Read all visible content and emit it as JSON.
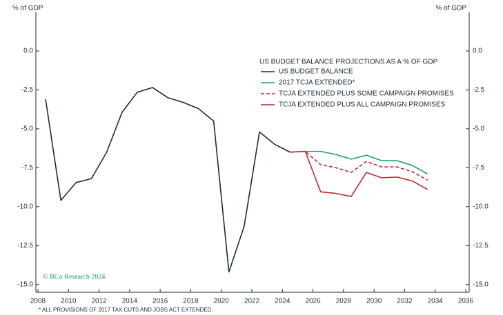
{
  "chart_data": {
    "type": "line",
    "y_axis_label_left": "% of GDP",
    "y_axis_label_right": "% of GDP",
    "legend_title": "US BUDGET BALANCE PROJECTIONS AS A % OF GDP",
    "watermark": "© BCα Research 2024",
    "footnote": "* ALL PROVISIONS OF 2017 TAX CUTS AND JOBS ACT EXTENDED.",
    "x": [
      2008.5,
      2009.5,
      2010.5,
      2011.5,
      2012.5,
      2013.5,
      2014.5,
      2015.5,
      2016.5,
      2017.5,
      2018.5,
      2019.5,
      2020.5,
      2021.5,
      2022.5,
      2023.5,
      2024.5,
      2025.5,
      2026.5,
      2027.5,
      2028.5,
      2029.5,
      2030.5,
      2031.5,
      2032.5,
      2033.5
    ],
    "series": [
      {
        "name": "US BUDGET BALANCE",
        "color": "#1d2b36",
        "style": "solid",
        "values": [
          -3.1,
          -9.6,
          -8.45,
          -8.2,
          -6.5,
          -3.95,
          -2.65,
          -2.35,
          -3.0,
          -3.3,
          -3.7,
          -4.5,
          -14.2,
          -11.25,
          -5.2,
          -6.0,
          -6.5,
          null,
          null,
          null,
          null,
          null,
          null,
          null,
          null,
          null
        ]
      },
      {
        "name": "2017 TCJA EXTENDED*",
        "color": "#1a9e7a",
        "style": "solid",
        "values": [
          null,
          null,
          null,
          null,
          null,
          null,
          null,
          null,
          null,
          null,
          null,
          null,
          null,
          null,
          null,
          null,
          -6.5,
          -6.45,
          -6.45,
          -6.65,
          -6.95,
          -6.7,
          -7.05,
          -7.05,
          -7.35,
          -7.9
        ]
      },
      {
        "name": "TCJA EXTENDED PLUS SOME CAMPAIGN PROMISES",
        "color": "#c0272d",
        "style": "dashed",
        "values": [
          null,
          null,
          null,
          null,
          null,
          null,
          null,
          null,
          null,
          null,
          null,
          null,
          null,
          null,
          null,
          null,
          -6.5,
          -6.45,
          -7.3,
          -7.5,
          -7.8,
          -7.1,
          -7.45,
          -7.45,
          -7.75,
          -8.3
        ]
      },
      {
        "name": "TCJA EXTENDED PLUS ALL CAMPAIGN PROMISES",
        "color": "#c0272d",
        "style": "solid",
        "values": [
          null,
          null,
          null,
          null,
          null,
          null,
          null,
          null,
          null,
          null,
          null,
          null,
          null,
          null,
          null,
          null,
          -6.5,
          -6.45,
          -9.05,
          -9.15,
          -9.35,
          -7.8,
          -8.15,
          -8.1,
          -8.35,
          -8.9
        ]
      }
    ],
    "xlim": [
      2008,
      2036
    ],
    "xticks": [
      2008,
      2010,
      2012,
      2014,
      2016,
      2018,
      2020,
      2022,
      2024,
      2026,
      2028,
      2030,
      2032,
      2034,
      2036
    ],
    "ylim": [
      -15.5,
      2.5
    ],
    "yticks": [
      {
        "value": 0,
        "label": "0.0"
      },
      {
        "value": -2.5,
        "label": "-2.5"
      },
      {
        "value": -5,
        "label": "-5.0"
      },
      {
        "value": -7.5,
        "label": "-7.5"
      },
      {
        "value": -10,
        "label": "-10.0"
      },
      {
        "value": -12.5,
        "label": "-12.5"
      },
      {
        "value": -15,
        "label": "-15.0"
      }
    ],
    "grid": false
  }
}
